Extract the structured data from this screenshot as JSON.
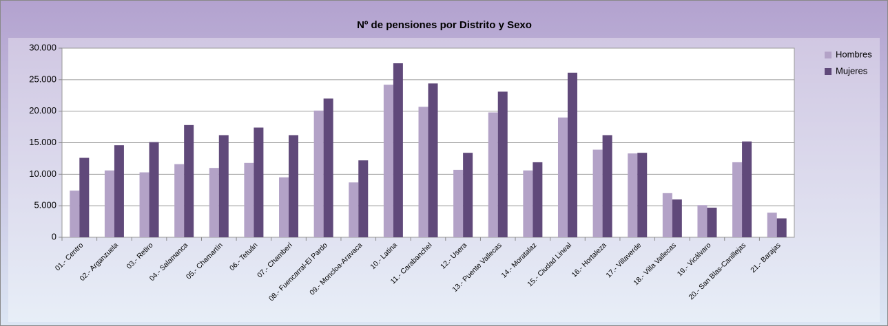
{
  "chart_data": {
    "type": "bar",
    "title": "Nº de pensiones por Distrito y Sexo",
    "categories": [
      "01.- Centro",
      "02.- Arganzuela",
      "03.- Retiro",
      "04.- Salamanca",
      "05.- Chamartín",
      "06.- Tetuán",
      "07.- Chamberí",
      "08.- Fuencarral-El Pardo",
      "09.- Moncloa-Aravaca",
      "10.- Latina",
      "11.- Carabanchel",
      "12.- Usera",
      "13.- Puente Vallecas",
      "14.- Moratalaz",
      "15.- Ciudad Lineal",
      "16.- Hortaleza",
      "17.- Villaverde",
      "18.- Villa Vallecas",
      "19.- Vicálvaro",
      "20.- San Blas-Canillejas",
      "21.- Barajas"
    ],
    "series": [
      {
        "name": "Hombres",
        "color": "#b3a2c7",
        "values": [
          7400,
          10600,
          10300,
          11600,
          11000,
          11800,
          9500,
          20100,
          8700,
          24200,
          20700,
          10700,
          19800,
          10600,
          19000,
          13900,
          13300,
          7000,
          5100,
          11900,
          3900
        ]
      },
      {
        "name": "Mujeres",
        "color": "#60497a",
        "values": [
          12600,
          14600,
          15100,
          17800,
          16200,
          17400,
          16200,
          22000,
          12200,
          27600,
          24400,
          13400,
          23100,
          11900,
          26100,
          16200,
          13400,
          6000,
          4700,
          15200,
          3000
        ]
      }
    ],
    "ylim": [
      0,
      30000
    ],
    "yticks": [
      0,
      {
        "value": 5000,
        "label": "5.000"
      },
      {
        "value": 10000,
        "label": "10.000"
      },
      {
        "value": 15000,
        "label": "15.000"
      },
      {
        "value": 20000,
        "label": "20.000"
      },
      {
        "value": 25000,
        "label": "25.000"
      },
      {
        "value": 30000,
        "label": "30.000"
      }
    ],
    "grid": true,
    "legend": "right"
  }
}
